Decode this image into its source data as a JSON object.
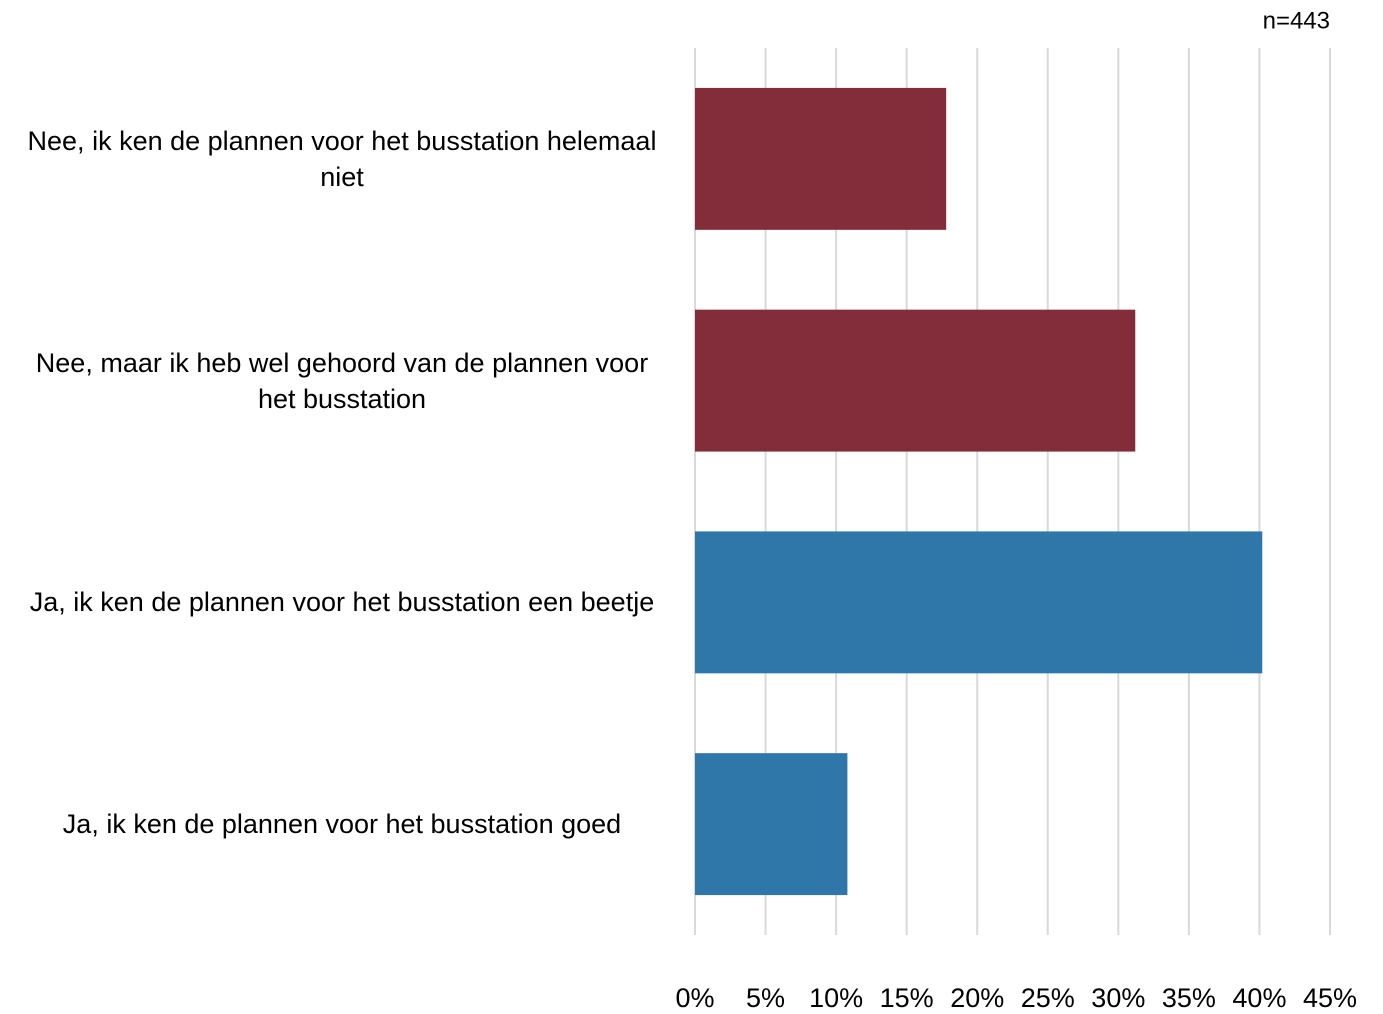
{
  "chart_data": {
    "type": "barh",
    "note": "n=443",
    "categories": [
      "Nee, ik ken de plannen voor het busstation helemaal niet",
      "Nee, maar ik heb wel gehoord van de plannen voor het busstation",
      "Ja, ik ken de plannen voor het busstation een beetje",
      "Ja, ik ken de plannen voor het busstation goed"
    ],
    "values": [
      17.8,
      31.2,
      40.2,
      10.8
    ],
    "colors": [
      "#842d3a",
      "#842d3a",
      "#2e77a8",
      "#2e77a8"
    ],
    "xlim": [
      0,
      45
    ],
    "xticks": [
      {
        "value": 0,
        "label": "0%"
      },
      {
        "value": 5,
        "label": "5%"
      },
      {
        "value": 10,
        "label": "10%"
      },
      {
        "value": 15,
        "label": "15%"
      },
      {
        "value": 20,
        "label": "20%"
      },
      {
        "value": 25,
        "label": "25%"
      },
      {
        "value": 30,
        "label": "30%"
      },
      {
        "value": 35,
        "label": "35%"
      },
      {
        "value": 40,
        "label": "40%"
      },
      {
        "value": 45,
        "label": "45%"
      }
    ],
    "grid": true
  }
}
